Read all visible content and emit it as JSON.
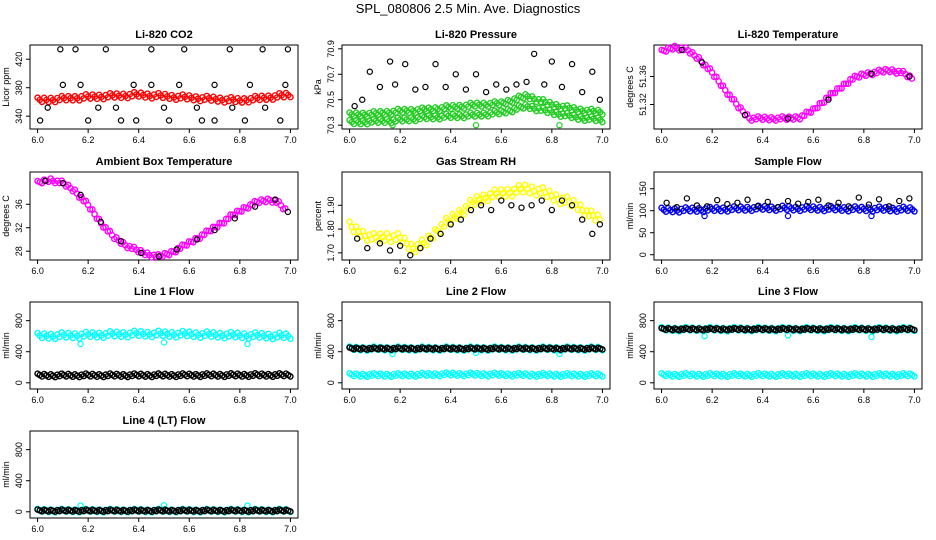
{
  "title": "SPL_080806  2.5 Min. Ave. Diagnostics",
  "colors": {
    "red": "#ff0000",
    "green": "#22cc22",
    "magenta": "#ff00ff",
    "yellow": "#ffff00",
    "blue": "#0000ee",
    "cyan": "#00ffff",
    "black": "#000000"
  },
  "chart_data": [
    {
      "type": "scatter",
      "title": "Li-820 CO2",
      "xlabel": "",
      "ylabel": "Licor ppm",
      "xlim": [
        5.97,
        7.03
      ],
      "ylim": [
        322,
        440
      ],
      "xticks": [
        "6.0",
        "6.2",
        "6.4",
        "6.6",
        "6.8",
        "7.0"
      ],
      "yticks": [
        "340",
        "380",
        "420"
      ],
      "grid": false,
      "series": [
        {
          "color": "red",
          "style": "band",
          "x": [
            6.0,
            6.2,
            6.4,
            6.6,
            6.8,
            7.0
          ],
          "y": [
            362,
            367,
            370,
            366,
            362,
            370
          ],
          "width": 8
        },
        {
          "color": "black",
          "style": "points",
          "x": [
            6.01,
            6.09,
            6.15,
            6.2,
            6.27,
            6.33,
            6.39,
            6.45,
            6.52,
            6.58,
            6.65,
            6.7,
            6.76,
            6.82,
            6.89,
            6.96,
            6.99
          ],
          "y": [
            334,
            434,
            434,
            334,
            434,
            334,
            334,
            434,
            334,
            434,
            334,
            334,
            434,
            334,
            434,
            334,
            434
          ]
        },
        {
          "color": "black",
          "style": "points",
          "x": [
            6.04,
            6.1,
            6.17,
            6.24,
            6.31,
            6.38,
            6.45,
            6.5,
            6.56,
            6.63,
            6.7,
            6.77,
            6.84,
            6.9,
            6.98
          ],
          "y": [
            352,
            384,
            384,
            352,
            352,
            384,
            384,
            352,
            384,
            352,
            384,
            352,
            384,
            352,
            384
          ]
        }
      ]
    },
    {
      "type": "scatter",
      "title": "Li-820 Pressure",
      "xlabel": "",
      "ylabel": "kPa",
      "xlim": [
        5.97,
        7.03
      ],
      "ylim": [
        70.27,
        70.93
      ],
      "xticks": [
        "6.0",
        "6.2",
        "6.4",
        "6.6",
        "6.8",
        "7.0"
      ],
      "yticks": [
        "70.3",
        "70.5",
        "70.7",
        "70.9"
      ],
      "grid": false,
      "series": [
        {
          "color": "green",
          "style": "band",
          "x": [
            6.0,
            6.1,
            6.2,
            6.3,
            6.4,
            6.5,
            6.6,
            6.7,
            6.8,
            6.9,
            7.0
          ],
          "y": [
            70.38,
            70.39,
            70.41,
            70.42,
            70.44,
            70.46,
            70.47,
            70.53,
            70.46,
            70.42,
            70.4
          ],
          "width": 7
        },
        {
          "color": "green",
          "style": "band",
          "x": [
            6.0,
            6.1,
            6.2,
            6.3,
            6.4,
            6.5,
            6.6,
            6.7,
            6.8,
            6.9,
            7.0
          ],
          "y": [
            70.32,
            70.33,
            70.34,
            70.36,
            70.37,
            70.38,
            70.4,
            70.45,
            70.4,
            70.36,
            70.34
          ],
          "width": 7
        },
        {
          "color": "green",
          "style": "points",
          "x": [
            6.17,
            6.5,
            6.83
          ],
          "y": [
            70.3,
            70.3,
            70.3
          ]
        },
        {
          "color": "black",
          "style": "points",
          "x": [
            6.02,
            6.05,
            6.08,
            6.12,
            6.16,
            6.18,
            6.22,
            6.26,
            6.3,
            6.34,
            6.38,
            6.42,
            6.46,
            6.5,
            6.54,
            6.58,
            6.62,
            6.66,
            6.7,
            6.73,
            6.77,
            6.8,
            6.84,
            6.88,
            6.92,
            6.96,
            6.99
          ],
          "y": [
            70.45,
            70.5,
            70.72,
            70.6,
            70.8,
            70.62,
            70.78,
            70.58,
            70.6,
            70.78,
            70.6,
            70.7,
            70.58,
            70.7,
            70.56,
            70.62,
            70.58,
            70.62,
            70.64,
            70.86,
            70.62,
            70.8,
            70.6,
            70.78,
            70.56,
            70.72,
            70.5
          ]
        }
      ]
    },
    {
      "type": "scatter",
      "title": "Li-820 Temperature",
      "xlabel": "",
      "ylabel": "degrees C",
      "xlim": [
        5.97,
        7.03
      ],
      "ylim": [
        51.285,
        51.405
      ],
      "xticks": [
        "6.0",
        "6.2",
        "6.4",
        "6.6",
        "6.8",
        "7.0"
      ],
      "yticks": [
        "51.32",
        "51.36"
      ],
      "grid": false,
      "series": [
        {
          "color": "magenta",
          "style": "band",
          "x": [
            6.0,
            6.05,
            6.1,
            6.15,
            6.2,
            6.25,
            6.3,
            6.35,
            6.4,
            6.45,
            6.5,
            6.55,
            6.6,
            6.65,
            6.7,
            6.75,
            6.8,
            6.85,
            6.9,
            6.95,
            6.99
          ],
          "y": [
            51.395,
            51.402,
            51.398,
            51.385,
            51.365,
            51.342,
            51.318,
            51.3,
            51.3,
            51.3,
            51.3,
            51.302,
            51.312,
            51.328,
            51.342,
            51.356,
            51.363,
            51.366,
            51.369,
            51.366,
            51.357
          ],
          "width": 6
        },
        {
          "color": "black",
          "style": "points",
          "x": [
            6.08,
            6.16,
            6.33,
            6.5,
            6.66,
            6.83,
            6.98
          ],
          "y": [
            51.398,
            51.38,
            51.305,
            51.3,
            51.327,
            51.364,
            51.36
          ]
        }
      ]
    },
    {
      "type": "scatter",
      "title": "Ambient Box Temperature",
      "xlabel": "",
      "ylabel": "degrees C",
      "xlim": [
        5.97,
        7.03
      ],
      "ylim": [
        26.5,
        41.5
      ],
      "xticks": [
        "6.0",
        "6.2",
        "6.4",
        "6.6",
        "6.8",
        "7.0"
      ],
      "yticks": [
        "28",
        "32",
        "36"
      ],
      "grid": false,
      "series": [
        {
          "color": "magenta",
          "style": "band",
          "x": [
            6.0,
            6.05,
            6.1,
            6.15,
            6.2,
            6.25,
            6.3,
            6.35,
            6.4,
            6.45,
            6.48,
            6.52,
            6.57,
            6.62,
            6.67,
            6.72,
            6.77,
            6.82,
            6.87,
            6.92,
            6.95,
            6.98
          ],
          "y": [
            39.6,
            40.2,
            39.6,
            38.2,
            35.8,
            32.9,
            30.4,
            29.0,
            28.0,
            27.3,
            27.1,
            27.6,
            28.7,
            29.9,
            31.2,
            32.6,
            34.1,
            35.4,
            36.4,
            36.8,
            36.3,
            35.0
          ],
          "width": 6
        },
        {
          "color": "black",
          "style": "points",
          "x": [
            6.03,
            6.1,
            6.17,
            6.25,
            6.33,
            6.41,
            6.48,
            6.55,
            6.63,
            6.7,
            6.78,
            6.86,
            6.94,
            6.99
          ],
          "y": [
            40.0,
            39.6,
            37.6,
            33.0,
            29.7,
            27.7,
            27.1,
            28.3,
            30.0,
            31.6,
            33.6,
            35.6,
            36.8,
            34.7
          ]
        }
      ]
    },
    {
      "type": "scatter",
      "title": "Gas Stream RH",
      "xlabel": "",
      "ylabel": "percent",
      "xlim": [
        5.97,
        7.03
      ],
      "ylim": [
        1.67,
        2.04
      ],
      "xticks": [
        "6.0",
        "6.2",
        "6.4",
        "6.6",
        "6.8",
        "7.0"
      ],
      "yticks": [
        "1.70",
        "1.80",
        "1.90"
      ],
      "grid": false,
      "series": [
        {
          "color": "yellow",
          "style": "band",
          "x": [
            6.0,
            6.05,
            6.1,
            6.15,
            6.2,
            6.25,
            6.3,
            6.35,
            6.4,
            6.45,
            6.5,
            6.55,
            6.6,
            6.65,
            6.7,
            6.75,
            6.8,
            6.85,
            6.9,
            6.95,
            6.99
          ],
          "y": [
            1.81,
            1.78,
            1.76,
            1.77,
            1.76,
            1.72,
            1.74,
            1.8,
            1.84,
            1.88,
            1.92,
            1.94,
            1.95,
            1.96,
            1.97,
            1.96,
            1.94,
            1.92,
            1.9,
            1.86,
            1.84
          ],
          "width": 14
        },
        {
          "color": "black",
          "style": "points",
          "x": [
            6.03,
            6.07,
            6.12,
            6.16,
            6.2,
            6.24,
            6.28,
            6.32,
            6.36,
            6.4,
            6.44,
            6.48,
            6.52,
            6.56,
            6.6,
            6.64,
            6.68,
            6.72,
            6.76,
            6.8,
            6.84,
            6.88,
            6.92,
            6.96,
            6.99
          ],
          "y": [
            1.76,
            1.72,
            1.74,
            1.71,
            1.73,
            1.69,
            1.72,
            1.76,
            1.78,
            1.82,
            1.84,
            1.88,
            1.9,
            1.88,
            1.92,
            1.9,
            1.89,
            1.9,
            1.92,
            1.88,
            1.92,
            1.9,
            1.84,
            1.78,
            1.82
          ]
        }
      ]
    },
    {
      "type": "scatter",
      "title": "Sample Flow",
      "xlabel": "",
      "ylabel": "ml/min",
      "xlim": [
        5.97,
        7.03
      ],
      "ylim": [
        -12,
        188
      ],
      "xticks": [
        "6.0",
        "6.2",
        "6.4",
        "6.6",
        "6.8",
        "7.0"
      ],
      "yticks": [
        "0",
        "50",
        "100",
        "150"
      ],
      "grid": false,
      "series": [
        {
          "color": "blue",
          "style": "band",
          "x": [
            6.0,
            6.2,
            6.4,
            6.6,
            6.8,
            7.0
          ],
          "y": [
            101,
            103,
            106,
            105,
            104,
            103
          ],
          "width": 7
        },
        {
          "color": "blue",
          "style": "points",
          "x": [
            6.17,
            6.5,
            6.83
          ],
          "y": [
            88,
            88,
            88
          ]
        },
        {
          "color": "black",
          "style": "points",
          "x": [
            6.02,
            6.06,
            6.1,
            6.14,
            6.18,
            6.22,
            6.26,
            6.3,
            6.34,
            6.38,
            6.42,
            6.46,
            6.5,
            6.54,
            6.58,
            6.62,
            6.66,
            6.7,
            6.74,
            6.78,
            6.82,
            6.86,
            6.9,
            6.94,
            6.98
          ],
          "y": [
            118,
            108,
            128,
            112,
            110,
            124,
            115,
            118,
            125,
            110,
            120,
            108,
            122,
            116,
            120,
            125,
            112,
            118,
            110,
            130,
            114,
            126,
            110,
            122,
            128
          ]
        }
      ]
    },
    {
      "type": "scatter",
      "title": "Line 1 Flow",
      "xlabel": "",
      "ylabel": "ml/min",
      "xlim": [
        5.97,
        7.03
      ],
      "ylim": [
        -80,
        1040
      ],
      "xticks": [
        "6.0",
        "6.2",
        "6.4",
        "6.6",
        "6.8",
        "7.0"
      ],
      "yticks": [
        "0",
        "400",
        "800"
      ],
      "grid": false,
      "series": [
        {
          "color": "cyan",
          "style": "band",
          "x": [
            6.0,
            6.2,
            6.4,
            6.6,
            6.8,
            7.0
          ],
          "y": [
            600,
            615,
            630,
            625,
            610,
            600
          ],
          "width": 9
        },
        {
          "color": "cyan",
          "style": "points",
          "x": [
            6.17,
            6.5,
            6.83
          ],
          "y": [
            500,
            520,
            500
          ]
        },
        {
          "color": "black",
          "style": "band",
          "x": [
            6.0,
            7.0
          ],
          "y": [
            95,
            100
          ],
          "width": 5
        }
      ]
    },
    {
      "type": "scatter",
      "title": "Line 2 Flow",
      "xlabel": "",
      "ylabel": "ml/min",
      "xlim": [
        5.97,
        7.03
      ],
      "ylim": [
        -80,
        1040
      ],
      "xticks": [
        "6.0",
        "6.2",
        "6.4",
        "6.6",
        "6.8",
        "7.0"
      ],
      "yticks": [
        "0",
        "400",
        "800"
      ],
      "grid": false,
      "series": [
        {
          "color": "cyan",
          "style": "band",
          "x": [
            6.0,
            6.2,
            6.4,
            6.6,
            6.8,
            7.0
          ],
          "y": [
            100,
            100,
            110,
            105,
            100,
            100
          ],
          "width": 5
        },
        {
          "color": "cyan",
          "style": "band",
          "x": [
            6.0,
            7.0
          ],
          "y": [
            440,
            440
          ],
          "width": 6
        },
        {
          "color": "cyan",
          "style": "points",
          "x": [
            6.17,
            6.5,
            6.83
          ],
          "y": [
            370,
            385,
            370
          ]
        },
        {
          "color": "black",
          "style": "band",
          "x": [
            6.0,
            7.0
          ],
          "y": [
            440,
            440
          ],
          "width": 3
        }
      ]
    },
    {
      "type": "scatter",
      "title": "Line 3 Flow",
      "xlabel": "",
      "ylabel": "ml/min",
      "xlim": [
        5.97,
        7.03
      ],
      "ylim": [
        -80,
        1040
      ],
      "xticks": [
        "6.0",
        "6.2",
        "6.4",
        "6.6",
        "6.8",
        "7.0"
      ],
      "yticks": [
        "0",
        "400",
        "800"
      ],
      "grid": false,
      "series": [
        {
          "color": "cyan",
          "style": "band",
          "x": [
            6.0,
            7.0
          ],
          "y": [
            100,
            100
          ],
          "width": 5
        },
        {
          "color": "cyan",
          "style": "band",
          "x": [
            6.0,
            7.0
          ],
          "y": [
            690,
            690
          ],
          "width": 6
        },
        {
          "color": "cyan",
          "style": "points",
          "x": [
            6.17,
            6.5,
            6.83
          ],
          "y": [
            600,
            610,
            590
          ]
        },
        {
          "color": "black",
          "style": "band",
          "x": [
            6.0,
            7.0
          ],
          "y": [
            690,
            690
          ],
          "width": 3
        }
      ]
    },
    {
      "type": "scatter",
      "title": "Line 4 (LT) Flow",
      "xlabel": "",
      "ylabel": "ml/min",
      "xlim": [
        5.97,
        7.03
      ],
      "ylim": [
        -80,
        1040
      ],
      "xticks": [
        "6.0",
        "6.2",
        "6.4",
        "6.6",
        "6.8",
        "7.0"
      ],
      "yticks": [
        "0",
        "400",
        "800"
      ],
      "grid": false,
      "series": [
        {
          "color": "cyan",
          "style": "band",
          "x": [
            6.0,
            7.0
          ],
          "y": [
            15,
            15
          ],
          "width": 5
        },
        {
          "color": "cyan",
          "style": "points",
          "x": [
            6.17,
            6.5,
            6.83
          ],
          "y": [
            80,
            85,
            80
          ]
        },
        {
          "color": "black",
          "style": "band",
          "x": [
            6.0,
            7.0
          ],
          "y": [
            15,
            15
          ],
          "width": 3
        }
      ]
    }
  ]
}
